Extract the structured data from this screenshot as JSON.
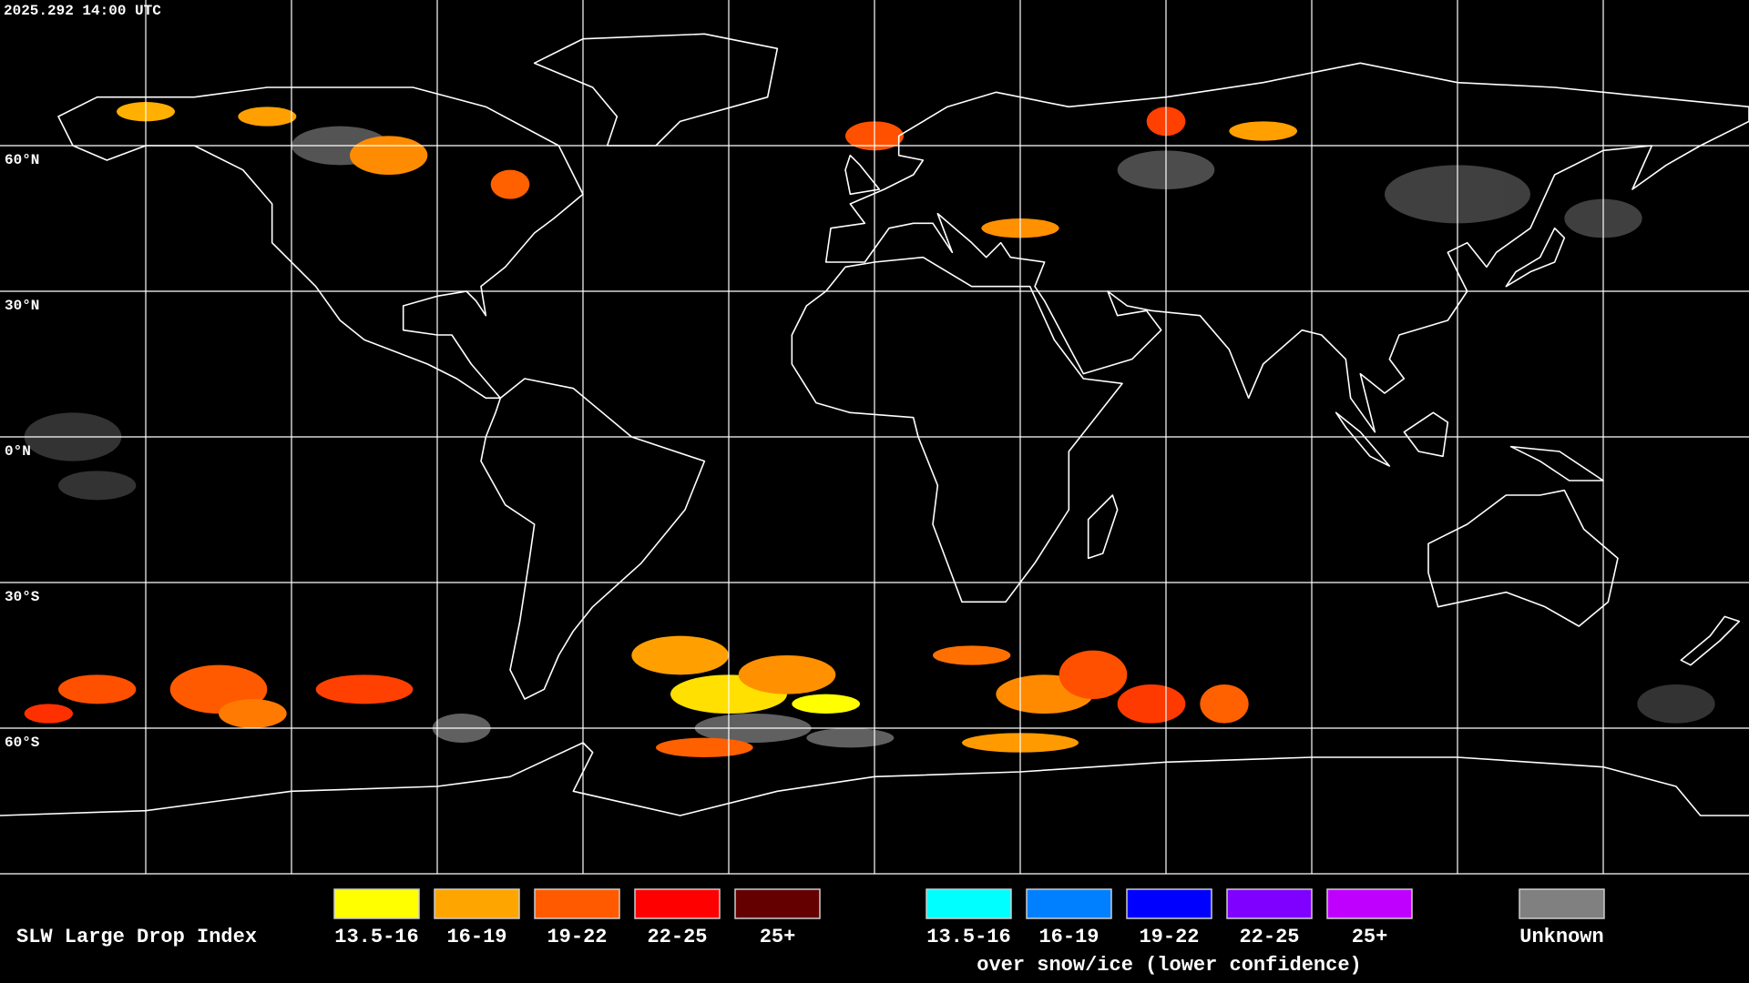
{
  "timestamp": "2025.292 14:00 UTC",
  "lat_labels": [
    "60°N",
    "30°N",
    "0°N",
    "30°S",
    "60°S"
  ],
  "legend": {
    "title": "SLW Large Drop Index",
    "groups": [
      {
        "items": [
          {
            "label": "13.5-16",
            "color": "#ffff00"
          },
          {
            "label": "16-19",
            "color": "#ffa500"
          },
          {
            "label": "19-22",
            "color": "#ff5a00"
          },
          {
            "label": "22-25",
            "color": "#ff0000"
          },
          {
            "label": "25+",
            "color": "#640000"
          }
        ]
      },
      {
        "caption": "over snow/ice (lower confidence)",
        "items": [
          {
            "label": "13.5-16",
            "color": "#00ffff"
          },
          {
            "label": "16-19",
            "color": "#0080ff"
          },
          {
            "label": "19-22",
            "color": "#0000ff"
          },
          {
            "label": "22-25",
            "color": "#8000ff"
          },
          {
            "label": "25+",
            "color": "#c000ff"
          }
        ]
      },
      {
        "items": [
          {
            "label": "Unknown",
            "color": "#808080"
          }
        ]
      }
    ]
  }
}
